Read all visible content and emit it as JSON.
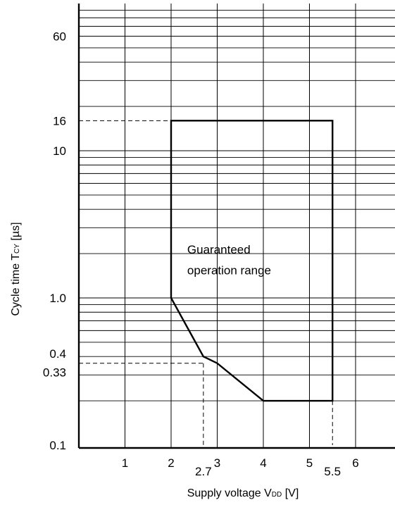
{
  "chart_data": {
    "type": "line",
    "title": "",
    "xlabel": "Supply voltage V",
    "xlabel_sub": "DD",
    "xlabel_unit": " [V]",
    "ylabel": "Cycle time T",
    "ylabel_sub": "CY",
    "ylabel_unit": " [µs]",
    "x_scale": "linear",
    "y_scale": "log",
    "xlim": [
      0,
      7
    ],
    "ylim": [
      0.1,
      100
    ],
    "grid": true,
    "x_ticks": [
      {
        "value": 1,
        "label": "1"
      },
      {
        "value": 2,
        "label": "2"
      },
      {
        "value": 3,
        "label": "3"
      },
      {
        "value": 4,
        "label": "4"
      },
      {
        "value": 5,
        "label": "5"
      },
      {
        "value": 6,
        "label": "6"
      }
    ],
    "x_extra_ticks": [
      {
        "value": 2.7,
        "label": "2.7"
      },
      {
        "value": 5.5,
        "label": "5.5"
      }
    ],
    "y_ticks": [
      {
        "value": 0.1,
        "label": "0.1"
      },
      {
        "value": 0.33,
        "label": "0.33"
      },
      {
        "value": 0.4,
        "label": "0.4"
      },
      {
        "value": 1.0,
        "label": "1.0"
      },
      {
        "value": 10,
        "label": "10"
      },
      {
        "value": 16,
        "label": "16"
      },
      {
        "value": 60,
        "label": "60"
      }
    ],
    "series": [
      {
        "x": [
          2.0,
          2.0,
          5.5,
          5.5,
          4.0,
          3.0,
          2.7,
          2.0
        ],
        "y": [
          1.0,
          16,
          16,
          0.2,
          0.2,
          0.36,
          0.4,
          1.0
        ]
      }
    ],
    "reference_lines": [
      {
        "from": [
          0,
          16
        ],
        "to": [
          2.0,
          16
        ]
      },
      {
        "from": [
          0,
          0.36
        ],
        "to": [
          2.7,
          0.36
        ]
      },
      {
        "from": [
          2.7,
          0.36
        ],
        "to": [
          2.7,
          0.1
        ]
      },
      {
        "from": [
          5.5,
          0.2
        ],
        "to": [
          5.5,
          0.1
        ]
      }
    ],
    "annotations": [
      {
        "text": "Guaranteed",
        "x": 2.35,
        "y": 2.0
      },
      {
        "text": "operation range",
        "x": 2.35,
        "y": 1.45
      }
    ]
  }
}
